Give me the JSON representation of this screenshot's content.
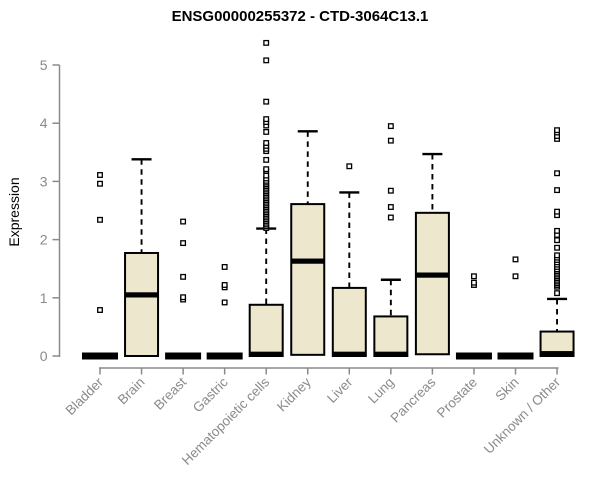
{
  "chart_data": {
    "type": "boxplot",
    "title": "ENSG00000255372 - CTD-3064C13.1",
    "ylabel": "Expression",
    "xlabel": "",
    "ylim": [
      0,
      5.4
    ],
    "yticks": [
      0,
      1,
      2,
      3,
      4,
      5
    ],
    "grid": false,
    "legend": false,
    "categories": [
      {
        "label": "Bladder",
        "q1": 0,
        "median": 0,
        "q3": 0,
        "whisker_low": 0,
        "whisker_high": 0,
        "outliers": [
          0.79,
          2.34,
          2.96,
          3.11
        ]
      },
      {
        "label": "Brain",
        "q1": 0,
        "median": 1.05,
        "q3": 1.77,
        "whisker_low": 0,
        "whisker_high": 3.38,
        "outliers": []
      },
      {
        "label": "Breast",
        "q1": 0,
        "median": 0,
        "q3": 0,
        "whisker_low": 0,
        "whisker_high": 0,
        "outliers": [
          0.97,
          1.01,
          1.36,
          1.94,
          2.31
        ]
      },
      {
        "label": "Gastric",
        "q1": 0,
        "median": 0,
        "q3": 0,
        "whisker_low": 0,
        "whisker_high": 0,
        "outliers": [
          0.92,
          1.18,
          1.22,
          1.53
        ]
      },
      {
        "label": "Hematopoietic cells",
        "q1": 0,
        "median": 0.03,
        "q3": 0.88,
        "whisker_low": 0,
        "whisker_high": 2.19,
        "outliers": [
          2.2,
          2.23,
          2.26,
          2.29,
          2.32,
          2.35,
          2.38,
          2.41,
          2.44,
          2.47,
          2.5,
          2.53,
          2.56,
          2.59,
          2.62,
          2.65,
          2.68,
          2.71,
          2.74,
          2.77,
          2.8,
          2.83,
          2.86,
          2.89,
          2.92,
          2.95,
          2.98,
          3.01,
          3.05,
          3.1,
          3.18,
          3.21,
          3.37,
          3.52,
          3.56,
          3.61,
          3.66,
          3.85,
          3.96,
          4.02,
          4.07,
          4.37,
          5.08,
          5.38
        ]
      },
      {
        "label": "Kidney",
        "q1": 0.02,
        "median": 1.63,
        "q3": 2.61,
        "whisker_low": 0.02,
        "whisker_high": 3.86,
        "outliers": []
      },
      {
        "label": "Liver",
        "q1": 0,
        "median": 0.03,
        "q3": 1.17,
        "whisker_low": 0,
        "whisker_high": 2.81,
        "outliers": [
          3.26
        ]
      },
      {
        "label": "Lung",
        "q1": 0,
        "median": 0.03,
        "q3": 0.68,
        "whisker_low": 0,
        "whisker_high": 1.31,
        "outliers": [
          2.38,
          2.56,
          2.84,
          3.7,
          3.95
        ]
      },
      {
        "label": "Pancreas",
        "q1": 0.03,
        "median": 1.39,
        "q3": 2.46,
        "whisker_low": 0.03,
        "whisker_high": 3.47,
        "outliers": []
      },
      {
        "label": "Prostate",
        "q1": 0,
        "median": 0,
        "q3": 0,
        "whisker_low": 0,
        "whisker_high": 0,
        "outliers": [
          1.22,
          1.26,
          1.37
        ]
      },
      {
        "label": "Skin",
        "q1": 0,
        "median": 0,
        "q3": 0,
        "whisker_low": 0,
        "whisker_high": 0,
        "outliers": [
          1.37,
          1.66
        ]
      },
      {
        "label": "Unknown / Other",
        "q1": 0,
        "median": 0.04,
        "q3": 0.42,
        "whisker_low": 0,
        "whisker_high": 0.98,
        "outliers": [
          1.08,
          1.19,
          1.22,
          1.25,
          1.28,
          1.31,
          1.34,
          1.37,
          1.4,
          1.43,
          1.46,
          1.49,
          1.53,
          1.57,
          1.61,
          1.65,
          1.69,
          1.73,
          1.86,
          1.99,
          2.08,
          2.15,
          2.42,
          2.48,
          2.85,
          3.14,
          3.73,
          3.78,
          3.84,
          3.88
        ]
      }
    ],
    "colors": {
      "box_fill": "#ede8cd",
      "box_border": "#000000",
      "median": "#000000",
      "whisker": "#000000",
      "outlier_stroke": "#000000",
      "outlier_fill": "#ffffff",
      "axis": "#8a8a8a",
      "tick_label": "#8a8a8a",
      "title": "#000000",
      "background": "#ffffff"
    }
  }
}
